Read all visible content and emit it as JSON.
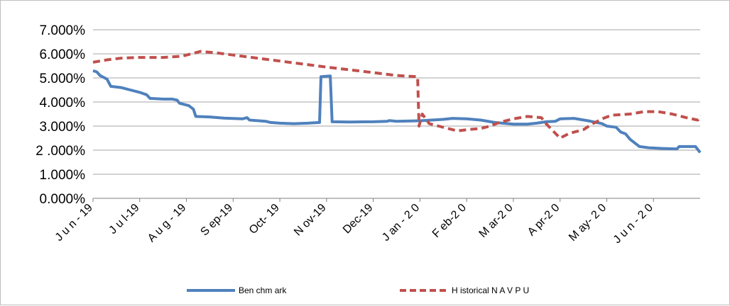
{
  "chart_data": {
    "type": "line",
    "title": "",
    "xlabel": "",
    "ylabel": "",
    "ylim": [
      0,
      7
    ],
    "grid": "horizontal",
    "legend": "bottom",
    "colors": {
      "benchmark": "#4f81bd",
      "navpu": "#c0504d",
      "grid": "#a6a6a6"
    },
    "y_ticks": [
      {
        "value": 0,
        "label": "0.000%"
      },
      {
        "value": 1,
        "label": "1.000%"
      },
      {
        "value": 2,
        "label": "2 .000%"
      },
      {
        "value": 3,
        "label": "3.000%"
      },
      {
        "value": 4,
        "label": "4.000%"
      },
      {
        "value": 5,
        "label": "5.000%"
      },
      {
        "value": 6,
        "label": "6.000%"
      },
      {
        "value": 7,
        "label": "7.000%"
      }
    ],
    "x_ticks": [
      {
        "x": 0,
        "label": "J u n - 19"
      },
      {
        "x": 1,
        "label": "J u l-19"
      },
      {
        "x": 2,
        "label": "A u g - 19"
      },
      {
        "x": 3,
        "label": "S ep-19"
      },
      {
        "x": 4,
        "label": "Oct- 19"
      },
      {
        "x": 5,
        "label": "N ov-19"
      },
      {
        "x": 6,
        "label": "Dec-19"
      },
      {
        "x": 7,
        "label": "J an - 2 0"
      },
      {
        "x": 8,
        "label": "F eb-2 0"
      },
      {
        "x": 9,
        "label": "M ar-2 0"
      },
      {
        "x": 10,
        "label": "A pr-2 0"
      },
      {
        "x": 11,
        "label": "M ay- 2 0"
      },
      {
        "x": 12,
        "label": "J u n - 2 0"
      }
    ],
    "x_range": [
      0,
      13
    ],
    "series": [
      {
        "name": "Ben chm ark",
        "style": "solid",
        "points": [
          [
            0,
            5.3
          ],
          [
            0.08,
            5.25
          ],
          [
            0.15,
            5.1
          ],
          [
            0.3,
            4.95
          ],
          [
            0.38,
            4.65
          ],
          [
            0.6,
            4.6
          ],
          [
            0.8,
            4.5
          ],
          [
            1.0,
            4.4
          ],
          [
            1.15,
            4.3
          ],
          [
            1.22,
            4.15
          ],
          [
            1.5,
            4.12
          ],
          [
            1.7,
            4.12
          ],
          [
            1.8,
            4.08
          ],
          [
            1.85,
            3.95
          ],
          [
            1.95,
            3.9
          ],
          [
            2.05,
            3.85
          ],
          [
            2.15,
            3.7
          ],
          [
            2.2,
            3.4
          ],
          [
            2.5,
            3.38
          ],
          [
            2.8,
            3.33
          ],
          [
            3.2,
            3.3
          ],
          [
            3.3,
            3.35
          ],
          [
            3.35,
            3.25
          ],
          [
            3.7,
            3.2
          ],
          [
            3.8,
            3.15
          ],
          [
            4.0,
            3.12
          ],
          [
            4.3,
            3.1
          ],
          [
            4.6,
            3.12
          ],
          [
            4.85,
            3.15
          ],
          [
            4.88,
            5.05
          ],
          [
            5.08,
            5.08
          ],
          [
            5.12,
            3.18
          ],
          [
            5.5,
            3.17
          ],
          [
            6.0,
            3.18
          ],
          [
            6.3,
            3.2
          ],
          [
            6.35,
            3.23
          ],
          [
            6.5,
            3.2
          ],
          [
            7.0,
            3.22
          ],
          [
            7.5,
            3.28
          ],
          [
            7.7,
            3.32
          ],
          [
            8.0,
            3.3
          ],
          [
            8.3,
            3.25
          ],
          [
            8.6,
            3.15
          ],
          [
            9.0,
            3.08
          ],
          [
            9.3,
            3.08
          ],
          [
            9.5,
            3.12
          ],
          [
            9.7,
            3.18
          ],
          [
            9.9,
            3.2
          ],
          [
            10.0,
            3.3
          ],
          [
            10.3,
            3.32
          ],
          [
            10.6,
            3.22
          ],
          [
            10.9,
            3.1
          ],
          [
            11.0,
            3.0
          ],
          [
            11.2,
            2.95
          ],
          [
            11.3,
            2.75
          ],
          [
            11.4,
            2.68
          ],
          [
            11.5,
            2.45
          ],
          [
            11.6,
            2.3
          ],
          [
            11.7,
            2.15
          ],
          [
            11.9,
            2.1
          ],
          [
            12.2,
            2.07
          ],
          [
            12.5,
            2.05
          ],
          [
            12.55,
            2.15
          ],
          [
            12.9,
            2.15
          ],
          [
            13.0,
            1.9
          ]
        ]
      },
      {
        "name": "H istorical N A V P U",
        "style": "dashed",
        "points": [
          [
            0,
            5.65
          ],
          [
            0.3,
            5.75
          ],
          [
            0.6,
            5.82
          ],
          [
            1.0,
            5.85
          ],
          [
            1.5,
            5.85
          ],
          [
            1.9,
            5.9
          ],
          [
            2.1,
            6.0
          ],
          [
            2.3,
            6.1
          ],
          [
            2.6,
            6.05
          ],
          [
            3.0,
            5.95
          ],
          [
            4.0,
            5.7
          ],
          [
            5.0,
            5.45
          ],
          [
            6.0,
            5.22
          ],
          [
            6.5,
            5.1
          ],
          [
            6.95,
            5.05
          ],
          [
            6.98,
            3.0
          ],
          [
            7.05,
            3.5
          ],
          [
            7.2,
            3.1
          ],
          [
            7.4,
            3.0
          ],
          [
            7.6,
            2.9
          ],
          [
            7.8,
            2.8
          ],
          [
            8.0,
            2.85
          ],
          [
            8.3,
            2.9
          ],
          [
            8.5,
            3.0
          ],
          [
            8.7,
            3.15
          ],
          [
            9.0,
            3.3
          ],
          [
            9.3,
            3.4
          ],
          [
            9.6,
            3.35
          ],
          [
            9.7,
            3.1
          ],
          [
            9.85,
            2.8
          ],
          [
            10.0,
            2.5
          ],
          [
            10.2,
            2.7
          ],
          [
            10.5,
            2.85
          ],
          [
            10.7,
            3.1
          ],
          [
            10.9,
            3.3
          ],
          [
            11.1,
            3.45
          ],
          [
            11.5,
            3.5
          ],
          [
            11.8,
            3.6
          ],
          [
            12.1,
            3.6
          ],
          [
            12.4,
            3.5
          ],
          [
            12.7,
            3.35
          ],
          [
            12.95,
            3.25
          ],
          [
            13.0,
            3.45
          ]
        ]
      }
    ]
  }
}
